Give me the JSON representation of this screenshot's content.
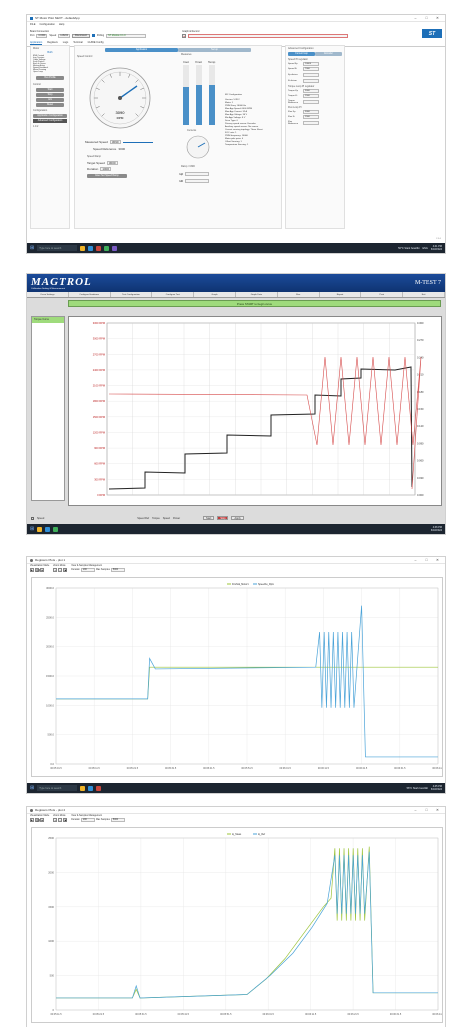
{
  "shot1": {
    "title": "ST Motor Pilot NEXT - defaultApp",
    "menu": [
      "FILE",
      "Configuration",
      "Help"
    ],
    "board_connection": "Board Connection",
    "graph_recorder": "Graph & Record",
    "port_label": "Port",
    "port_value": "COM9",
    "speed_label": "Speed",
    "speed_value": "115200",
    "disconnect": "Disconnect",
    "polling": "Polling",
    "module_status": "ST Module 0.1.0",
    "logo": "ST",
    "tabs": [
      "Application",
      "Registers",
      "Logs",
      "Terminal",
      "GUIDE Config"
    ],
    "motor_label": "Motor",
    "motor_value": "Both",
    "status_items": [
      "ENS Control",
      "Icon Tension",
      "Cable Voltage",
      "Fault Protect",
      "Back In Demo",
      "Motion Active",
      "Speed Feedback",
      "Motor Running",
      "Open Loop"
    ],
    "run_button": "Run Profile",
    "control_label": "Control",
    "control_buttons": [
      "Start",
      "Stop",
      "Ack",
      "Reset"
    ],
    "config_label": "Configuration",
    "config_buttons": [
      "Application Configuration",
      "Advanced Configuration"
    ],
    "bottom_left": "1.0.2",
    "mode_tabs": [
      "Application",
      "Set up"
    ],
    "speed_section": "Speed Control",
    "gauge_value": "3090",
    "gauge_unit": "RPM",
    "measured_speed_label": "Measured Speed",
    "measured_speed_value": "3090",
    "speed_reference_label": "Speed Reference",
    "speed_reference_value": "3000",
    "speed_ramp_label": "Speed Ramp",
    "target_speed_label": "Target Speed",
    "target_speed_value": "3000",
    "duration_label": "Duration",
    "duration_value": "1000",
    "exec_button": "Exec Set Speed Ramp",
    "measures_label": "Measures",
    "bars": [
      "Imot",
      "Vmot",
      "Temp"
    ],
    "current_label": "Currents",
    "ramp_label": "Ramp / CMD",
    "ramp_fields": [
      "Iq0",
      "Id0"
    ],
    "mc_config": "MC Configuration",
    "config_lines": [
      "Version: 5.99.2",
      "Motor: 1",
      "PWM Freq: 16000 Hz",
      "Max App Speed: 6400 RPM",
      "Max App Current: 32 A",
      "Max App Voltage: 36 V",
      "Min App Voltage: 8 V",
      "Drive Type: 0",
      "Primary speed sensor: Encoder",
      "Auxiliary speed sensor: No sensor",
      "Current sensing topology: Three Shunt",
      "FOC rate: 1",
      "PWM frequency: 16000",
      "Motor pole pairs: 4",
      "Offset Sensing: 1",
      "Temperature Sensing: 1"
    ],
    "adv_config": "Advanced Configuration",
    "adv_tabs": [
      "Current loop",
      "Encoder"
    ],
    "speed_pi": "Speed PI regulator",
    "speed_kp": "Speed Kp",
    "speed_ki": "Speed Ki",
    "speed_kp_val": "10000",
    "speed_ki_val": "7000",
    "div_labels": [
      "Kp divisor",
      "Ki divisor"
    ],
    "torque_pi": "Torque Loop PI regulator",
    "torque_kp": "Torque Kp",
    "torque_ki": "Torque Ki",
    "torque_kp_val": "3000",
    "torque_ki_val": "1500",
    "torque_ref": "Torque Reference",
    "flux_pi": "Flux Loop PI",
    "flux_kp": "Flux Kp",
    "flux_ki": "Flux Ki",
    "flux_kp_val": "3000",
    "flux_ki_val": "1500",
    "flux_ref": "Flux Reference",
    "version": "2.5.0",
    "task_search": "Type here to search",
    "weather": "56°C Stark bewölkt",
    "lang": "ENG",
    "time": "4:41 PM",
    "date": "6/18/2024"
  },
  "shot2": {
    "logo": "MAGTROL",
    "subtitle": "Calibration Setting & Measurement",
    "title": "M-TEST 7",
    "tabs": [
      "Curve Settings",
      "Configure Hardware",
      "Test Configuration",
      "Configure Test",
      "Graph",
      "Graph Data",
      "Run",
      "Report",
      "Print",
      "Exit"
    ],
    "status": "Press START to begin curve",
    "left_head": "Torque Curve",
    "left_axis": [
      "3300 RPM",
      "3000 RPM",
      "2700 RPM",
      "2400 RPM",
      "2100 RPM",
      "1800 RPM",
      "1500 RPM",
      "1200 RPM",
      "900 RPM",
      "600 RPM",
      "300 RPM",
      "0 RPM"
    ],
    "right_axis": [
      "0.300",
      "0.270",
      "0.240",
      "0.210",
      "0.180",
      "0.150",
      "0.120",
      "0.090",
      "0.060",
      "0.030",
      "0.000"
    ],
    "bottom_checks": [
      "Speed Ref",
      "Torque",
      "Speed",
      "Power"
    ],
    "start_button": "Start",
    "stop_button": "Stop",
    "speed_label": "Speed",
    "time_label": "4:46 PM",
    "date": "6/18/2024",
    "apply_label": "Apply"
  },
  "shot3": {
    "title": "Registers Plots - plot 1",
    "acq_mode": "Visualization Mode",
    "zoom_mode": "Zoom Mode",
    "view_mgmt": "View & Samples Management",
    "duration_label": "Duration",
    "duration_value": "200",
    "max_samples_label": "Max Samples",
    "max_samples_value": "5000",
    "legend": [
      "FirstVal_Motor1",
      "SpeedAv_Rpm"
    ],
    "y_ticks": [
      "3000.0",
      "2500.0",
      "2000.0",
      "1500.0",
      "1000.0",
      "500.0",
      "0.0"
    ],
    "x_ticks": [
      "00:05:01.5",
      "00:05:11.5",
      "00:05:21.5",
      "00:05:31.5",
      "00:05:41.5",
      "00:05:51.5",
      "00:06:01.5",
      "00:06:11.5",
      "00:06:21.5",
      "00:06:31.5",
      "00:06:41.5"
    ],
    "time": "4:45 PM",
    "date": "6/18/2024"
  },
  "shot4": {
    "title": "Registers Plots - plot 2",
    "acq_mode": "Visualization Mode",
    "zoom_mode": "Zoom Mode",
    "view_mgmt": "View & Samples Management",
    "duration_label": "Duration",
    "duration_value": "200",
    "max_samples_label": "Max Samples",
    "max_samples_value": "5000",
    "legend": [
      "Iq_Meas",
      "Iq_Ref"
    ],
    "y_ticks": [
      "2500",
      "2000",
      "1500",
      "1000",
      "500",
      "0"
    ],
    "x_ticks": [
      "00:05:11.5",
      "00:05:21.5",
      "00:05:31.5",
      "00:05:41.5",
      "00:05:51.5",
      "00:06:01.5",
      "00:06:11.5",
      "00:06:21.5",
      "00:06:31.5",
      "00:06:41.5"
    ]
  },
  "colors": {
    "st_blue": "#1d6fb8",
    "magtrol_blue": "#1b4b9a",
    "speed_trace": "#222222",
    "torque_trace": "#d64a4a",
    "plot_blue": "#4aa3d8",
    "plot_green": "#9dc43a"
  }
}
